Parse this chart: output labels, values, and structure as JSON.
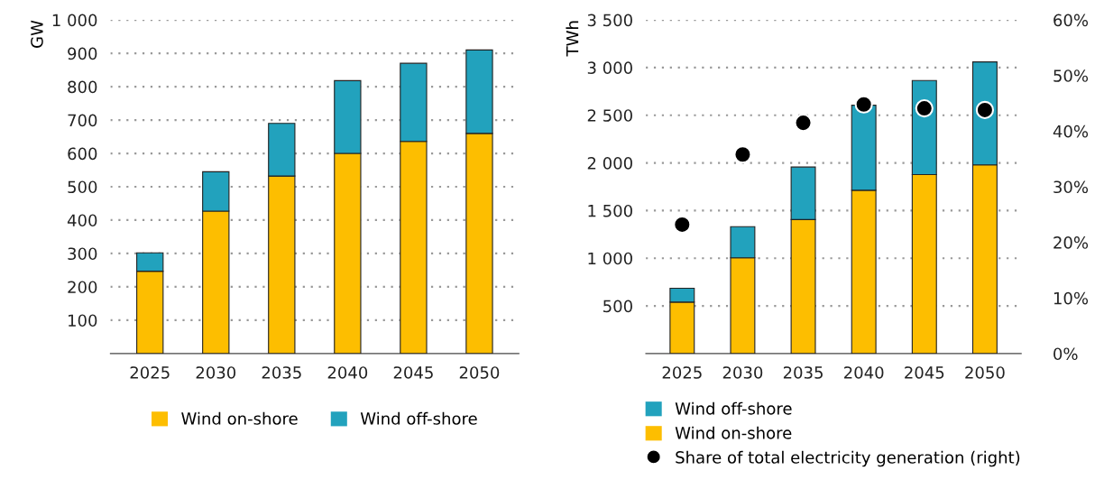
{
  "chart_data": [
    {
      "type": "bar",
      "stacked": true,
      "ylabel": "GW",
      "categories": [
        "2025",
        "2030",
        "2035",
        "2040",
        "2045",
        "2050"
      ],
      "ylim": [
        0,
        1000
      ],
      "yticks": [
        {
          "value": 100,
          "label": "100"
        },
        {
          "value": 200,
          "label": "200"
        },
        {
          "value": 300,
          "label": "300"
        },
        {
          "value": 400,
          "label": "400"
        },
        {
          "value": 500,
          "label": "500"
        },
        {
          "value": 600,
          "label": "600"
        },
        {
          "value": 700,
          "label": "700"
        },
        {
          "value": 800,
          "label": "800"
        },
        {
          "value": 900,
          "label": "900"
        },
        {
          "value": 1000,
          "label": "1 000"
        }
      ],
      "grid": "y",
      "legend": "bottom",
      "series": [
        {
          "name": "Wind on-shore",
          "color": "#fdbe00",
          "values": [
            247,
            427,
            532,
            600,
            636,
            660
          ]
        },
        {
          "name": "Wind off-shore",
          "color": "#22a2bd",
          "values": [
            55,
            118,
            158,
            218,
            234,
            250
          ]
        }
      ]
    },
    {
      "type": "bar",
      "stacked": true,
      "ylabel": "TWh",
      "categories": [
        "2025",
        "2030",
        "2035",
        "2040",
        "2045",
        "2050"
      ],
      "ylim": [
        0,
        3500
      ],
      "yticks": [
        {
          "value": 500,
          "label": "500"
        },
        {
          "value": 1000,
          "label": "1 000"
        },
        {
          "value": 1500,
          "label": "1 500"
        },
        {
          "value": 2000,
          "label": "2 000"
        },
        {
          "value": 2500,
          "label": "2 500"
        },
        {
          "value": 3000,
          "label": "3 000"
        },
        {
          "value": 3500,
          "label": "3 500"
        }
      ],
      "y2lim": [
        0,
        60
      ],
      "y2ticks": [
        {
          "value": 0,
          "label": "0%"
        },
        {
          "value": 10,
          "label": "10%"
        },
        {
          "value": 20,
          "label": "20%"
        },
        {
          "value": 30,
          "label": "30%"
        },
        {
          "value": 40,
          "label": "40%"
        },
        {
          "value": 50,
          "label": "50%"
        },
        {
          "value": 60,
          "label": "60%"
        }
      ],
      "grid": "y",
      "legend": "bottom",
      "series": [
        {
          "name": "Wind on-shore",
          "color": "#fdbe00",
          "values": [
            540,
            1005,
            1406,
            1713,
            1878,
            1979
          ]
        },
        {
          "name": "Wind off-shore",
          "color": "#22a2bd",
          "values": [
            146,
            326,
            551,
            892,
            986,
            1080
          ]
        },
        {
          "name": "Share of total electricity generation (right)",
          "type": "scatter",
          "axis": "y2",
          "marker": "circle",
          "color": "#000000",
          "values": [
            23.2,
            35.8,
            41.5,
            44.8,
            44.1,
            43.8
          ]
        }
      ]
    }
  ]
}
